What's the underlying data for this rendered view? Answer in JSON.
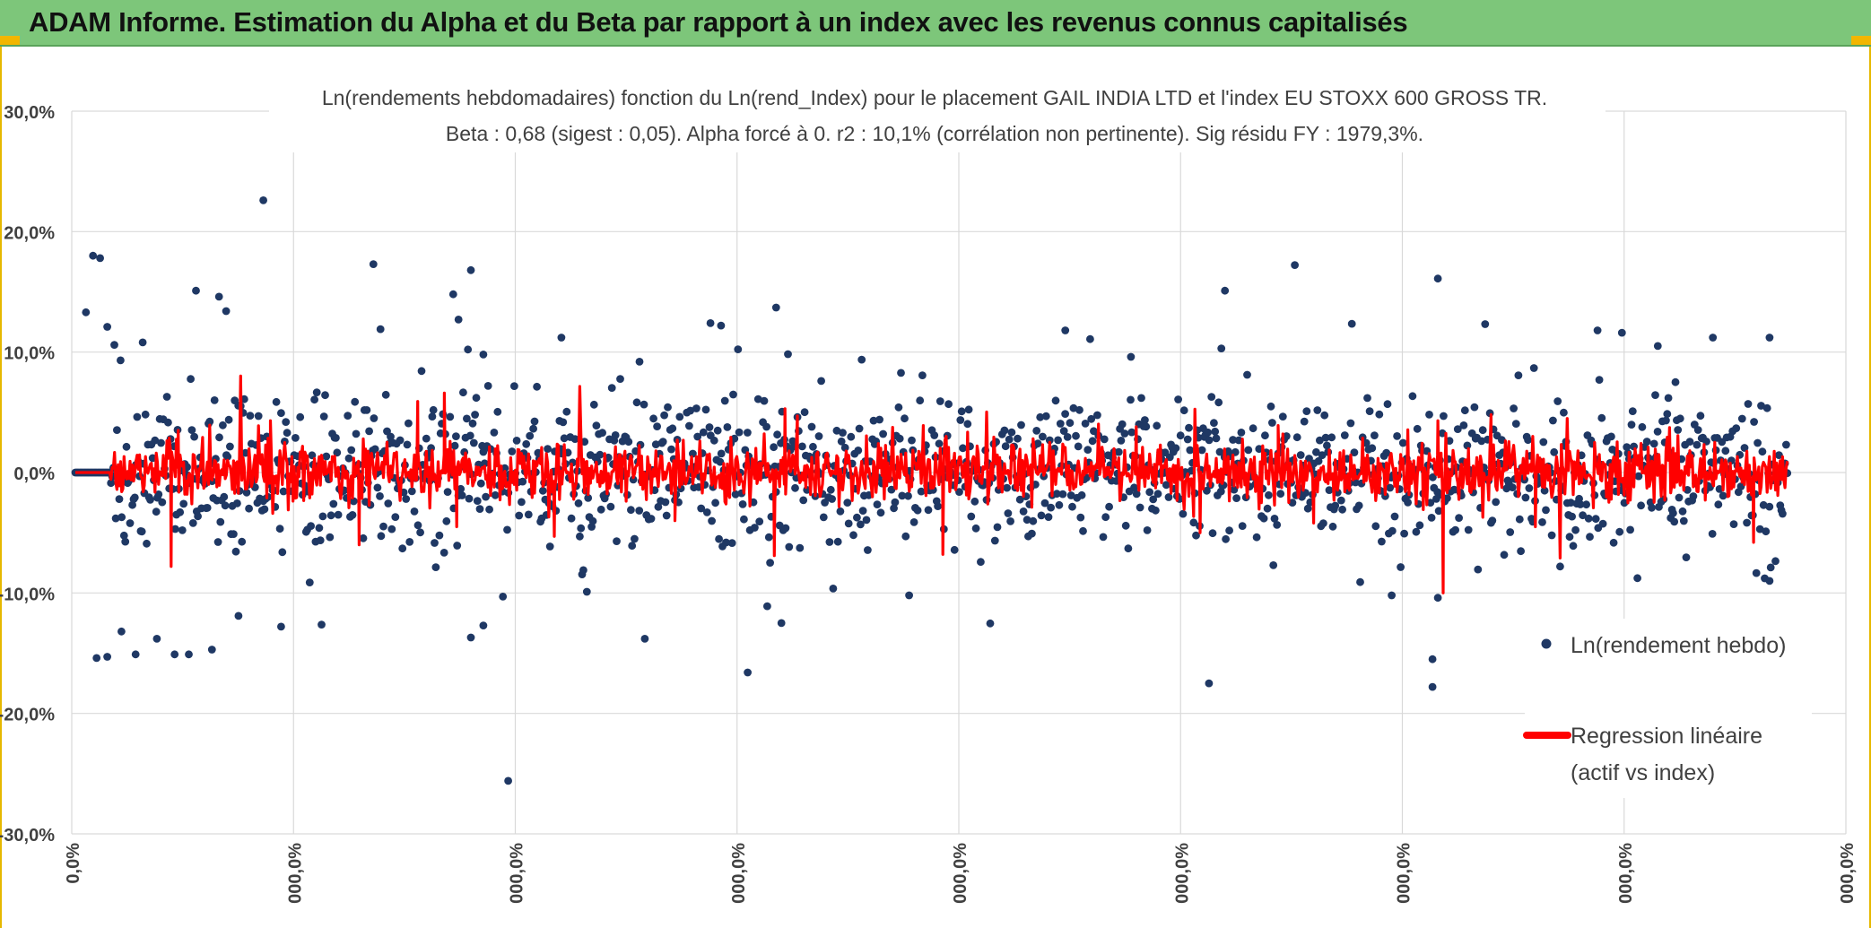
{
  "banner": {
    "title": "ADAM Informe. Estimation du Alpha et du Beta par rapport à un index avec les revenus connus capitalisés"
  },
  "colors": {
    "banner_bg": "#7dc67a",
    "accent_corner": "#f2b600",
    "points": "#1f3864",
    "regression": "#ff0000",
    "grid": "#d9d9d9"
  },
  "chart_data": {
    "type": "scatter",
    "title": "Ln(rendements hebdomadaires) fonction du Ln(rend_Index) pour le placement GAIL INDIA LTD et l'index EU STOXX 600 GROSS TR.",
    "subtitle": "Beta : 0,68 (sigest : 0,05). Alpha forcé à 0. r2 : 10,1% (corrélation non pertinente). Sig résidu FY : 1979,3%.",
    "y_ticks": [
      "30,0%",
      "20,0%",
      "10,0%",
      "0,0%",
      "-10,0%",
      "-20,0%",
      "-30,0%"
    ],
    "ylim": [
      -30,
      30
    ],
    "x_ticks": [
      "0,0%",
      "000,0%",
      "000,0%",
      "000,0%",
      "000,0%",
      "000,0%",
      "000,0%",
      "000,0%",
      "000,0%"
    ],
    "grid": "horizontal and vertical",
    "legend_placement": "right",
    "series": [
      {
        "name": "Ln(rendement hebdo)",
        "kind": "scatter",
        "n_points": 1440,
        "mean": 0.1,
        "stdev_core": 3.0,
        "outliers": [
          [
            0.012,
            18.0
          ],
          [
            0.016,
            17.8
          ],
          [
            0.008,
            13.3
          ],
          [
            0.02,
            12.1
          ],
          [
            0.024,
            10.6
          ],
          [
            0.04,
            10.8
          ],
          [
            0.07,
            15.1
          ],
          [
            0.083,
            14.6
          ],
          [
            0.087,
            13.4
          ],
          [
            0.108,
            22.6
          ],
          [
            0.17,
            17.3
          ],
          [
            0.174,
            11.9
          ],
          [
            0.215,
            14.8
          ],
          [
            0.218,
            12.7
          ],
          [
            0.225,
            16.8
          ],
          [
            0.232,
            9.8
          ],
          [
            0.276,
            11.2
          ],
          [
            0.32,
            9.2
          ],
          [
            0.36,
            12.4
          ],
          [
            0.366,
            12.2
          ],
          [
            0.397,
            13.7
          ],
          [
            0.56,
            11.8
          ],
          [
            0.597,
            9.6
          ],
          [
            0.65,
            15.1
          ],
          [
            0.648,
            10.3
          ],
          [
            0.77,
            16.1
          ],
          [
            0.86,
            11.8
          ],
          [
            0.894,
            10.5
          ],
          [
            0.925,
            11.2
          ],
          [
            0.957,
            11.2
          ],
          [
            0.014,
            -15.4
          ],
          [
            0.02,
            -15.3
          ],
          [
            0.028,
            -13.2
          ],
          [
            0.036,
            -15.1
          ],
          [
            0.048,
            -13.8
          ],
          [
            0.058,
            -15.1
          ],
          [
            0.066,
            -15.1
          ],
          [
            0.079,
            -14.7
          ],
          [
            0.094,
            -11.9
          ],
          [
            0.118,
            -12.8
          ],
          [
            0.225,
            -13.7
          ],
          [
            0.232,
            -12.7
          ],
          [
            0.243,
            -10.3
          ],
          [
            0.246,
            -25.6
          ],
          [
            0.323,
            -13.8
          ],
          [
            0.381,
            -16.6
          ],
          [
            0.392,
            -11.1
          ],
          [
            0.4,
            -12.5
          ],
          [
            0.472,
            -10.2
          ],
          [
            0.641,
            -17.5
          ],
          [
            0.767,
            -17.8
          ],
          [
            0.767,
            -15.5
          ],
          [
            0.77,
            -10.4
          ],
          [
            0.957,
            -9.0
          ],
          [
            0.744,
            -10.2
          ]
        ]
      },
      {
        "name": "Regression linéaire (actif vs index)",
        "legend_lines": [
          "Regression linéaire",
          "(actif vs index)"
        ],
        "kind": "line",
        "beta": 0.68,
        "alpha": 0,
        "spikes": [
          [
            0.056,
            -7.8
          ],
          [
            0.112,
            4.3
          ],
          [
            0.162,
            -6.0
          ],
          [
            0.195,
            5.9
          ],
          [
            0.21,
            6.6
          ],
          [
            0.217,
            -4.5
          ],
          [
            0.396,
            -6.9
          ],
          [
            0.402,
            5.3
          ],
          [
            0.409,
            4.7
          ],
          [
            0.491,
            -6.8
          ],
          [
            0.48,
            3.9
          ],
          [
            0.516,
            2.9
          ],
          [
            0.636,
            -5.0
          ],
          [
            0.773,
            -10.0
          ],
          [
            0.77,
            4.3
          ],
          [
            0.8,
            4.8
          ],
          [
            0.825,
            -4.5
          ],
          [
            0.948,
            -5.8
          ],
          [
            0.272,
            -5.3
          ],
          [
            0.34,
            -4.0
          ],
          [
            0.6,
            3.8
          ],
          [
            0.68,
            3.9
          ],
          [
            0.7,
            -4.2
          ],
          [
            0.06,
            3.5
          ]
        ]
      }
    ]
  }
}
